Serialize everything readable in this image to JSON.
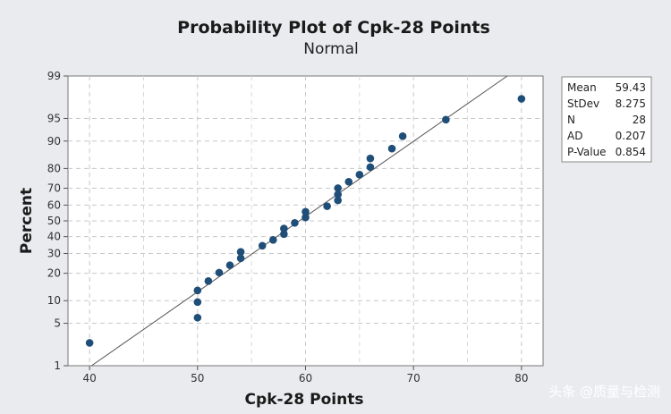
{
  "chart_data": {
    "type": "scatter",
    "title": "Probability Plot of Cpk-28 Points",
    "subtitle": "Normal",
    "xlabel": "Cpk-28 Points",
    "ylabel": "Percent",
    "xlim": [
      38,
      82
    ],
    "ylim_percent": [
      1,
      99
    ],
    "x_ticks": [
      40,
      50,
      60,
      70,
      80
    ],
    "y_ticks": [
      1,
      5,
      10,
      20,
      30,
      40,
      50,
      60,
      70,
      80,
      90,
      95,
      99
    ],
    "y_scale": "normal-probability",
    "grid": true,
    "point_color": "#1f4e79",
    "line_color": "#555555",
    "fit_line": {
      "mean": 59.43,
      "stdev": 8.275
    },
    "points": [
      {
        "x": 40,
        "y": 2.5
      },
      {
        "x": 50,
        "y": 6.0
      },
      {
        "x": 50,
        "y": 9.6
      },
      {
        "x": 50,
        "y": 13.2
      },
      {
        "x": 51,
        "y": 16.7
      },
      {
        "x": 52,
        "y": 20.3
      },
      {
        "x": 53,
        "y": 23.8
      },
      {
        "x": 54,
        "y": 27.4
      },
      {
        "x": 54,
        "y": 30.9
      },
      {
        "x": 56,
        "y": 34.5
      },
      {
        "x": 57,
        "y": 38.0
      },
      {
        "x": 58,
        "y": 41.6
      },
      {
        "x": 58,
        "y": 45.1
      },
      {
        "x": 59,
        "y": 48.7
      },
      {
        "x": 60,
        "y": 52.2
      },
      {
        "x": 60,
        "y": 55.8
      },
      {
        "x": 62,
        "y": 59.3
      },
      {
        "x": 63,
        "y": 62.9
      },
      {
        "x": 63,
        "y": 66.4
      },
      {
        "x": 63,
        "y": 70.0
      },
      {
        "x": 64,
        "y": 73.5
      },
      {
        "x": 65,
        "y": 77.1
      },
      {
        "x": 66,
        "y": 80.6
      },
      {
        "x": 66,
        "y": 84.2
      },
      {
        "x": 68,
        "y": 87.7
      },
      {
        "x": 69,
        "y": 91.3
      },
      {
        "x": 73,
        "y": 94.8
      },
      {
        "x": 80,
        "y": 97.5
      }
    ],
    "legend_position": "top-right",
    "stats": [
      {
        "label": "Mean",
        "value": "59.43"
      },
      {
        "label": "StDev",
        "value": "8.275"
      },
      {
        "label": "N",
        "value": "28"
      },
      {
        "label": "AD",
        "value": "0.207"
      },
      {
        "label": "P-Value",
        "value": "0.854"
      }
    ]
  },
  "watermark": "头条 @质量与检测"
}
